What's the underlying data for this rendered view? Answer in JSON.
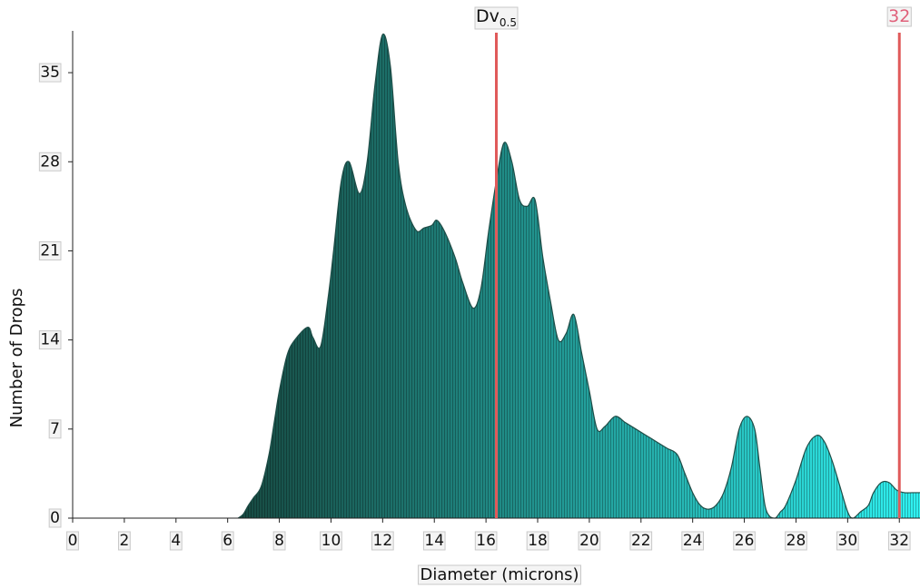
{
  "chart_data": {
    "type": "area",
    "xlabel": "Diameter (microns)",
    "ylabel": "Number of Drops",
    "xlim": [
      0,
      32.8
    ],
    "ylim": [
      0,
      38
    ],
    "xticks": [
      0,
      2,
      4,
      6,
      8,
      10,
      12,
      14,
      16,
      18,
      20,
      22,
      24,
      26,
      28,
      30,
      32
    ],
    "yticks": [
      0,
      7,
      14,
      21,
      28,
      35
    ],
    "grid": false,
    "legend": "none",
    "colors": {
      "fill_start": "#174a42",
      "fill_end": "#2ff2f2",
      "outline": "#1f4d47",
      "marker": "#e05a5a",
      "marker_text": "#e0607a"
    },
    "markers": [
      {
        "x": 16.4,
        "label_main": "Dv",
        "label_sub": "0.5",
        "text_color": "#111111"
      },
      {
        "x": 32,
        "label_main": "32",
        "label_sub": "",
        "text_color": "#e0607a"
      }
    ],
    "series": [
      {
        "x": [
          6.4,
          6.6,
          6.8,
          7.0,
          7.3,
          7.6,
          7.8,
          8.0,
          8.3,
          8.6,
          9.1,
          9.3,
          9.6,
          9.9,
          10.1,
          10.4,
          10.7,
          11.1,
          11.4,
          11.7,
          12.0,
          12.3,
          12.6,
          12.9,
          13.3,
          13.6,
          13.9,
          14.1,
          14.4,
          14.8,
          15.1,
          15.5,
          15.8,
          16.1,
          16.4,
          16.7,
          17.0,
          17.3,
          17.6,
          17.9,
          18.2,
          18.5,
          18.8,
          19.1,
          19.4,
          19.7,
          20.0,
          20.3,
          20.6,
          21.0,
          21.4,
          21.8,
          22.2,
          22.6,
          23.0,
          23.4,
          23.7,
          24.0,
          24.3,
          24.6,
          24.9,
          25.2,
          25.5,
          25.8,
          26.1,
          26.4,
          26.6,
          26.8,
          27.0,
          27.2,
          27.4,
          27.6,
          28.0,
          28.4,
          28.8,
          29.1,
          29.4,
          29.7,
          30.0,
          30.2,
          30.5,
          30.8,
          31.0,
          31.3,
          31.6,
          31.9,
          32.2,
          32.5,
          32.8
        ],
        "y": [
          0,
          0.3,
          1.0,
          1.6,
          2.5,
          5.0,
          7.5,
          10.0,
          12.8,
          14.0,
          15.0,
          14.2,
          13.5,
          17.5,
          21.0,
          26.5,
          28.0,
          25.5,
          28.0,
          34.0,
          38.0,
          35.5,
          28.0,
          24.5,
          22.6,
          22.8,
          23.0,
          23.4,
          22.5,
          20.5,
          18.5,
          16.5,
          18.0,
          22.5,
          26.5,
          29.5,
          28.0,
          25.0,
          24.5,
          25.0,
          20.5,
          17.0,
          14.0,
          14.5,
          16.0,
          13.0,
          10.0,
          7.0,
          7.2,
          8.0,
          7.5,
          7.0,
          6.5,
          6.0,
          5.5,
          5.0,
          3.5,
          2.0,
          1.0,
          0.7,
          1.0,
          2.0,
          4.0,
          7.0,
          8.0,
          7.0,
          4.0,
          1.0,
          0.1,
          0,
          0.5,
          1.0,
          3.0,
          5.5,
          6.5,
          6.0,
          4.5,
          2.5,
          0.5,
          0,
          0.5,
          1.0,
          2.0,
          2.8,
          2.8,
          2.2,
          2.0,
          2.0,
          2.0
        ]
      }
    ]
  }
}
